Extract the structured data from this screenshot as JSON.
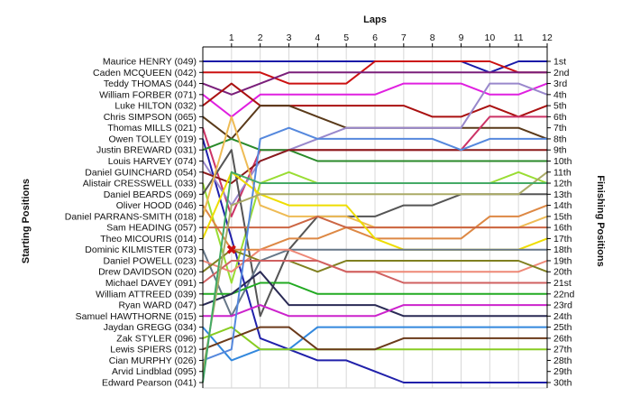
{
  "chart_data": {
    "type": "line",
    "xlabel": "Laps",
    "ylabel_left": "Starting Positions",
    "ylabel_right": "Finishing Positions",
    "laps": [
      1,
      2,
      3,
      4,
      5,
      6,
      7,
      8,
      9,
      10,
      11,
      12
    ],
    "drivers": [
      "Maurice HENRY (049)",
      "Caden MCQUEEN (042)",
      "Teddy THOMAS (044)",
      "William FORBER (071)",
      "Luke HILTON (032)",
      "Chris SIMPSON (065)",
      "Thomas MILLS (021)",
      "Owen TOLLEY (019)",
      "Justin BREWARD (031)",
      "Louis HARVEY (074)",
      "Daniel GUINCHARD (054)",
      "Alistair CRESSWELL (033)",
      "Daniel BEARDS (069)",
      "Oliver HOOD (046)",
      "Daniel PARRANS-SMITH (018)",
      "Sam HEADING (057)",
      "Theo MICOURIS (014)",
      "Dominic KILMISTER (073)",
      "Daniel POWELL (023)",
      "Drew DAVIDSON (020)",
      "Michael DAVEY (091)",
      "William ATTREED (039)",
      "Ryan WARD (047)",
      "Samuel HAWTHORNE (015)",
      "Jaydan GREGG (034)",
      "Zak STYLER (096)",
      "Lewis SPIERS (012)",
      "Cian MURPHY (026)",
      "Arvid Lindblad (095)",
      "Edward Pearson (041)"
    ],
    "finishing_labels": [
      "1st",
      "2nd",
      "3rd",
      "4th",
      "5th",
      "6th",
      "7th",
      "8th",
      "9th",
      "10th",
      "11th",
      "12th",
      "13th",
      "14th",
      "15th",
      "16th",
      "17th",
      "18th",
      "19th",
      "20th",
      "21st",
      "22nd",
      "23rd",
      "24th",
      "25th",
      "26th",
      "27th",
      "28th",
      "29th",
      "30th"
    ],
    "series": [
      {
        "color": "#1a1aa8",
        "positions": [
          1,
          1,
          1,
          1,
          1,
          1,
          1,
          1,
          1,
          1,
          2,
          1,
          1
        ]
      },
      {
        "color": "#cc1111",
        "positions": [
          2,
          2,
          2,
          3,
          3,
          3,
          1,
          1,
          1,
          1,
          1,
          2,
          2
        ]
      },
      {
        "color": "#7a1f7a",
        "positions": [
          3,
          4,
          3,
          2,
          2,
          2,
          2,
          2,
          2,
          2,
          2,
          2,
          2
        ]
      },
      {
        "color": "#e020e0",
        "positions": [
          4,
          6,
          4,
          4,
          4,
          4,
          4,
          3,
          3,
          3,
          4,
          4,
          3
        ]
      },
      {
        "color": "#aa1111",
        "positions": [
          5,
          3,
          5,
          5,
          5,
          5,
          5,
          5,
          6,
          6,
          5,
          6,
          5
        ]
      },
      {
        "color": "#5a3a1a",
        "positions": [
          6,
          8,
          5,
          5,
          6,
          7,
          7,
          7,
          7,
          7,
          7,
          7,
          8
        ]
      },
      {
        "color": "#cc3366",
        "positions": [
          7,
          15,
          9,
          9,
          9,
          9,
          9,
          9,
          9,
          9,
          6,
          6,
          6
        ]
      },
      {
        "color": "#2020aa",
        "positions": [
          8,
          17,
          26,
          27,
          28,
          28,
          29,
          30,
          30,
          30,
          30,
          30,
          30
        ]
      },
      {
        "color": "#2a8a2a",
        "positions": [
          9,
          8,
          9,
          9,
          10,
          10,
          10,
          10,
          10,
          10,
          10,
          10,
          10
        ]
      },
      {
        "color": "#9988cc",
        "positions": [
          10,
          14,
          10,
          9,
          8,
          7,
          7,
          7,
          7,
          7,
          3,
          3,
          4
        ]
      },
      {
        "color": "#8b1a1a",
        "positions": [
          11,
          12,
          10,
          9,
          9,
          9,
          9,
          9,
          9,
          9,
          9,
          9,
          9
        ]
      },
      {
        "color": "#99dd33",
        "positions": [
          12,
          21,
          12,
          11,
          12,
          12,
          12,
          12,
          12,
          12,
          12,
          11,
          12
        ]
      },
      {
        "color": "#555555",
        "positions": [
          13,
          9,
          24,
          18,
          15,
          15,
          15,
          14,
          14,
          13,
          13,
          13,
          13
        ]
      },
      {
        "color": "#dd8844",
        "positions": [
          14,
          18,
          18,
          17,
          17,
          16,
          17,
          17,
          17,
          17,
          15,
          15,
          14
        ]
      },
      {
        "color": "#eebb55",
        "positions": [
          15,
          6,
          14,
          15,
          15,
          15,
          16,
          16,
          16,
          16,
          16,
          16,
          15
        ]
      },
      {
        "color": "#cc6644",
        "positions": [
          16,
          16,
          16,
          16,
          15,
          16,
          16,
          16,
          16,
          16,
          16,
          16,
          16
        ]
      },
      {
        "color": "#eedd00",
        "positions": [
          17,
          11,
          13,
          14,
          14,
          14,
          17,
          18,
          18,
          18,
          18,
          18,
          17
        ]
      },
      {
        "color": "#667788",
        "positions": [
          18,
          24,
          19,
          18,
          18,
          18,
          18,
          18,
          18,
          18,
          18,
          18,
          18
        ]
      },
      {
        "color": "#ee8877",
        "positions": [
          19,
          20,
          18,
          18,
          19,
          20,
          20,
          20,
          20,
          20,
          20,
          20,
          19
        ]
      },
      {
        "color": "#808020",
        "positions": [
          20,
          18,
          19,
          19,
          20,
          19,
          19,
          19,
          19,
          19,
          19,
          19,
          20
        ]
      },
      {
        "color": "#d06060",
        "positions": [
          21,
          19,
          19,
          19,
          19,
          20,
          20,
          21,
          21,
          21,
          21,
          21,
          21
        ]
      },
      {
        "color": "#22aa22",
        "positions": [
          22,
          22,
          21,
          21,
          22,
          22,
          22,
          22,
          22,
          22,
          22,
          22,
          22
        ]
      },
      {
        "color": "#2a2a55",
        "positions": [
          23,
          22,
          20,
          23,
          23,
          23,
          23,
          24,
          24,
          24,
          24,
          24,
          24
        ]
      },
      {
        "color": "#cc22cc",
        "positions": [
          24,
          24,
          23,
          24,
          24,
          24,
          24,
          23,
          23,
          23,
          23,
          23,
          23
        ]
      },
      {
        "color": "#3388dd",
        "positions": [
          25,
          28,
          27,
          27,
          25,
          25,
          25,
          25,
          25,
          25,
          25,
          25,
          25
        ]
      },
      {
        "color": "#88cc22",
        "positions": [
          26,
          25,
          27,
          27,
          27,
          27,
          27,
          27,
          27,
          27,
          27,
          27,
          27
        ]
      },
      {
        "color": "#6b3a1a",
        "positions": [
          27,
          26,
          25,
          25,
          27,
          27,
          27,
          26,
          26,
          26,
          26,
          26,
          26
        ]
      },
      {
        "color": "#5588dd",
        "positions": [
          28,
          27,
          8,
          7,
          8,
          8,
          8,
          8,
          8,
          9,
          8,
          8,
          8
        ]
      },
      {
        "color": "#aaaa66",
        "positions": [
          29,
          14,
          13,
          13,
          13,
          13,
          13,
          13,
          13,
          13,
          13,
          13,
          11
        ]
      },
      {
        "color": "#44aa66",
        "positions": [
          30,
          11,
          12,
          12,
          12,
          12,
          12,
          12,
          12,
          12,
          12,
          12,
          12
        ]
      }
    ],
    "annotations": [
      {
        "type": "retired",
        "symbol": "✖",
        "lap": 1,
        "position": 18,
        "color": "#cc1111"
      }
    ],
    "grid": true,
    "legend": "none"
  }
}
